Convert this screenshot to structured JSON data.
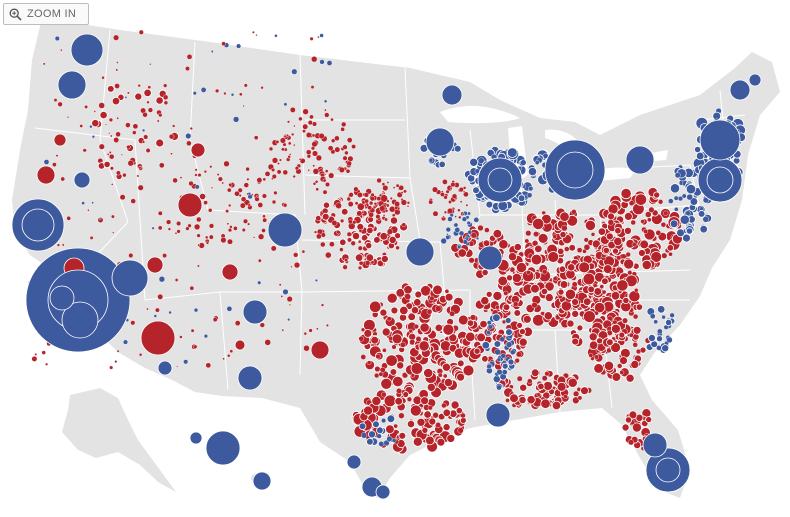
{
  "zoom": {
    "label": "ZOOM IN",
    "icon": "magnifier-plus-icon"
  },
  "map": {
    "land_color": "#e3e3e3",
    "border_color": "#ffffff",
    "democrat_color": "#3d5a9e",
    "republican_color": "#b5242a",
    "bubble_stroke": "#ffffff"
  }
}
